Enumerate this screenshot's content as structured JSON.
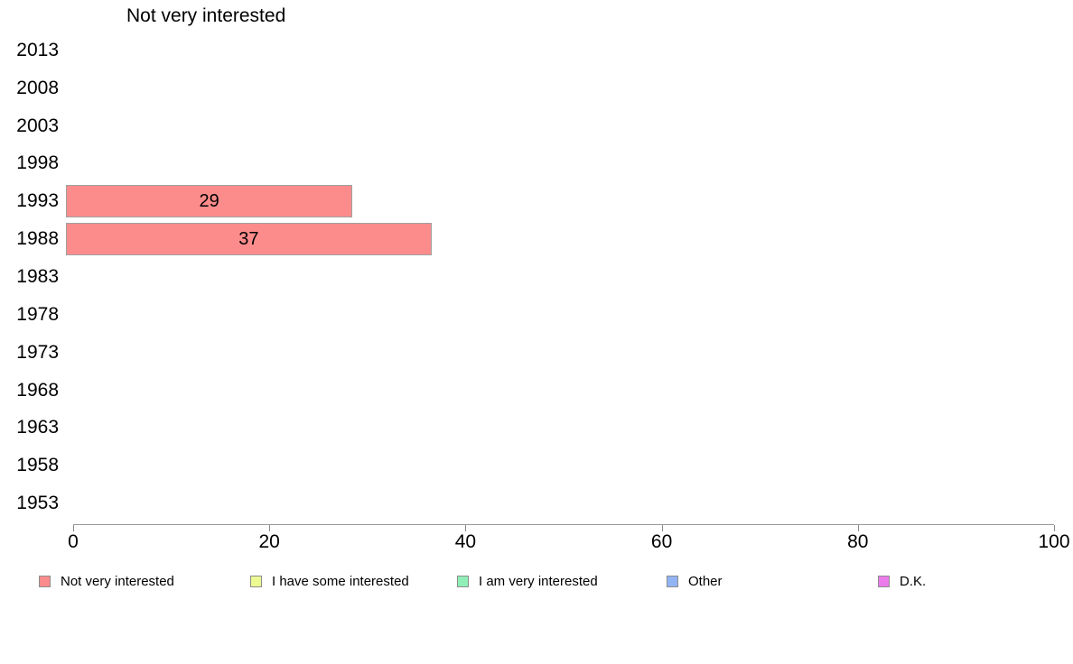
{
  "chart_data": {
    "type": "bar",
    "orientation": "horizontal",
    "title": "Not very interested",
    "categories": [
      "2013",
      "2008",
      "2003",
      "1998",
      "1993",
      "1988",
      "1983",
      "1978",
      "1973",
      "1968",
      "1963",
      "1958",
      "1953"
    ],
    "series": [
      {
        "name": "Not very interested",
        "color": "#fc8c8c",
        "values": [
          null,
          null,
          null,
          null,
          29,
          37,
          null,
          null,
          null,
          null,
          null,
          null,
          null
        ]
      },
      {
        "name": "I have some interested",
        "color": "#edf992",
        "values": [
          null,
          null,
          null,
          null,
          null,
          null,
          null,
          null,
          null,
          null,
          null,
          null,
          null
        ]
      },
      {
        "name": "I am very interested",
        "color": "#8fefb7",
        "values": [
          null,
          null,
          null,
          null,
          null,
          null,
          null,
          null,
          null,
          null,
          null,
          null,
          null
        ]
      },
      {
        "name": "Other",
        "color": "#92b4f4",
        "values": [
          null,
          null,
          null,
          null,
          null,
          null,
          null,
          null,
          null,
          null,
          null,
          null,
          null
        ]
      },
      {
        "name": "D.K.",
        "color": "#eb7beb",
        "values": [
          null,
          null,
          null,
          null,
          null,
          null,
          null,
          null,
          null,
          null,
          null,
          null,
          null
        ]
      }
    ],
    "xlim": [
      0,
      100
    ],
    "x_ticks": [
      0,
      20,
      40,
      60,
      80,
      100
    ],
    "grid": false,
    "legend_position": "bottom",
    "bar_labels_visible": true
  }
}
